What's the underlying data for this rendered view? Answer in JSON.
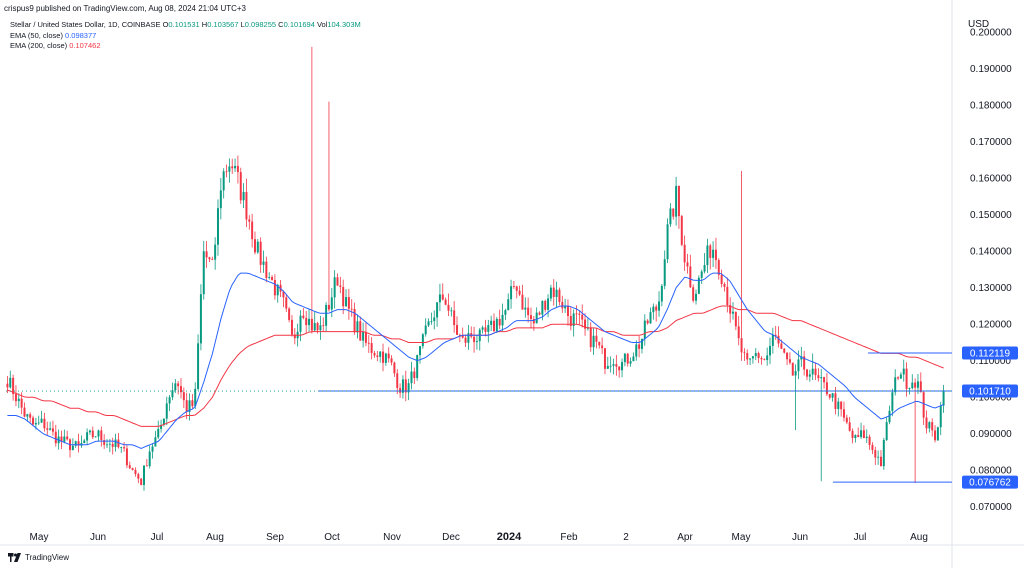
{
  "header": {
    "published": "crispus9 published on TradingView.com, Aug 08, 2024 21:04 UTC+3",
    "symbol": "Stellar / United States Dollar, 1D, COINBASE",
    "ohlc": [
      {
        "key": "O",
        "value": "0.101531"
      },
      {
        "key": "H",
        "value": "0.103567"
      },
      {
        "key": "L",
        "value": "0.098255"
      },
      {
        "key": "C",
        "value": "0.101694"
      },
      {
        "key": "Vol",
        "value": "104.303M"
      }
    ],
    "ema50_label": "EMA (50, close)",
    "ema50_value": "0.098377",
    "ema200_label": "EMA (200, close)",
    "ema200_value": "0.107462"
  },
  "currency": "USD",
  "footer": {
    "brand": "TradingView"
  },
  "colors": {
    "up": "#089981",
    "down": "#f23645",
    "ema50": "#2962ff",
    "ema200": "#f23645",
    "level_line": "#2962ff",
    "badge": "#2962ff"
  },
  "chart_data": {
    "type": "candlestick",
    "y_axis": {
      "ticks": [
        "0.200000",
        "0.190000",
        "0.180000",
        "0.170000",
        "0.160000",
        "0.150000",
        "0.140000",
        "0.130000",
        "0.120000",
        "0.110000",
        "0.100000",
        "0.090000",
        "0.080000",
        "0.070000"
      ],
      "range": [
        0.065,
        0.205
      ],
      "position": "right"
    },
    "x_axis": {
      "ticks": [
        "May",
        "Jun",
        "Jul",
        "Aug",
        "Sep",
        "Oct",
        "Nov",
        "Dec",
        "2024",
        "Feb",
        "2",
        "Apr",
        "May",
        "Jun",
        "Jul",
        "Aug"
      ],
      "bold_ticks": [
        "2024"
      ]
    },
    "levels": [
      {
        "value": 0.112119,
        "label": "0.112119"
      },
      {
        "value": 0.10171,
        "label": "0.101710"
      },
      {
        "value": 0.076762,
        "label": "0.076762"
      }
    ],
    "current_price": 0.101694,
    "anchors": [
      0.105,
      0.1,
      0.095,
      0.092,
      0.093,
      0.09,
      0.088,
      0.087,
      0.086,
      0.089,
      0.09,
      0.088,
      0.087,
      0.085,
      0.08,
      0.077,
      0.086,
      0.09,
      0.1,
      0.105,
      0.097,
      0.098,
      0.14,
      0.135,
      0.16,
      0.165,
      0.158,
      0.15,
      0.14,
      0.135,
      0.13,
      0.125,
      0.115,
      0.125,
      0.12,
      0.118,
      0.125,
      0.133,
      0.125,
      0.12,
      0.115,
      0.113,
      0.112,
      0.109,
      0.103,
      0.103,
      0.11,
      0.118,
      0.124,
      0.128,
      0.12,
      0.115,
      0.117,
      0.116,
      0.118,
      0.121,
      0.124,
      0.132,
      0.124,
      0.12,
      0.125,
      0.13,
      0.127,
      0.122,
      0.121,
      0.117,
      0.115,
      0.11,
      0.111,
      0.109,
      0.112,
      0.115,
      0.122,
      0.125,
      0.145,
      0.155,
      0.138,
      0.128,
      0.135,
      0.142,
      0.135,
      0.125,
      0.115,
      0.108,
      0.112,
      0.11,
      0.117,
      0.111,
      0.106,
      0.109,
      0.107,
      0.104,
      0.102,
      0.098,
      0.093,
      0.088,
      0.09,
      0.086,
      0.082,
      0.098,
      0.108,
      0.104,
      0.105,
      0.093,
      0.089,
      0.101
    ],
    "ema50_anchors": [
      0.095,
      0.095,
      0.094,
      0.092,
      0.09,
      0.089,
      0.088,
      0.087,
      0.087,
      0.087,
      0.088,
      0.088,
      0.088,
      0.087,
      0.087,
      0.086,
      0.087,
      0.088,
      0.091,
      0.094,
      0.096,
      0.097,
      0.104,
      0.112,
      0.122,
      0.13,
      0.134,
      0.134,
      0.133,
      0.132,
      0.131,
      0.129,
      0.126,
      0.125,
      0.124,
      0.123,
      0.123,
      0.124,
      0.124,
      0.123,
      0.121,
      0.119,
      0.117,
      0.115,
      0.113,
      0.111,
      0.11,
      0.111,
      0.113,
      0.115,
      0.116,
      0.117,
      0.117,
      0.117,
      0.117,
      0.118,
      0.119,
      0.121,
      0.121,
      0.121,
      0.122,
      0.124,
      0.125,
      0.125,
      0.124,
      0.122,
      0.12,
      0.118,
      0.117,
      0.116,
      0.115,
      0.115,
      0.117,
      0.119,
      0.124,
      0.13,
      0.133,
      0.132,
      0.132,
      0.134,
      0.134,
      0.132,
      0.128,
      0.124,
      0.121,
      0.118,
      0.117,
      0.115,
      0.113,
      0.111,
      0.11,
      0.109,
      0.107,
      0.105,
      0.103,
      0.1,
      0.098,
      0.096,
      0.094,
      0.095,
      0.097,
      0.098,
      0.099,
      0.098,
      0.097,
      0.098
    ],
    "ema200_anchors": [
      0.102,
      0.101,
      0.1,
      0.1,
      0.099,
      0.099,
      0.098,
      0.097,
      0.097,
      0.096,
      0.096,
      0.095,
      0.095,
      0.094,
      0.093,
      0.092,
      0.092,
      0.092,
      0.093,
      0.094,
      0.095,
      0.095,
      0.097,
      0.1,
      0.105,
      0.109,
      0.112,
      0.114,
      0.115,
      0.116,
      0.117,
      0.117,
      0.117,
      0.117,
      0.118,
      0.118,
      0.118,
      0.118,
      0.118,
      0.118,
      0.118,
      0.117,
      0.117,
      0.116,
      0.116,
      0.115,
      0.115,
      0.115,
      0.116,
      0.116,
      0.116,
      0.117,
      0.117,
      0.117,
      0.117,
      0.118,
      0.118,
      0.119,
      0.119,
      0.119,
      0.119,
      0.12,
      0.12,
      0.12,
      0.12,
      0.119,
      0.119,
      0.118,
      0.118,
      0.117,
      0.117,
      0.117,
      0.118,
      0.118,
      0.119,
      0.121,
      0.122,
      0.123,
      0.123,
      0.124,
      0.125,
      0.125,
      0.124,
      0.124,
      0.123,
      0.123,
      0.123,
      0.122,
      0.121,
      0.121,
      0.12,
      0.119,
      0.118,
      0.117,
      0.116,
      0.115,
      0.114,
      0.113,
      0.112,
      0.112,
      0.112,
      0.111,
      0.111,
      0.11,
      0.109,
      0.108
    ]
  }
}
